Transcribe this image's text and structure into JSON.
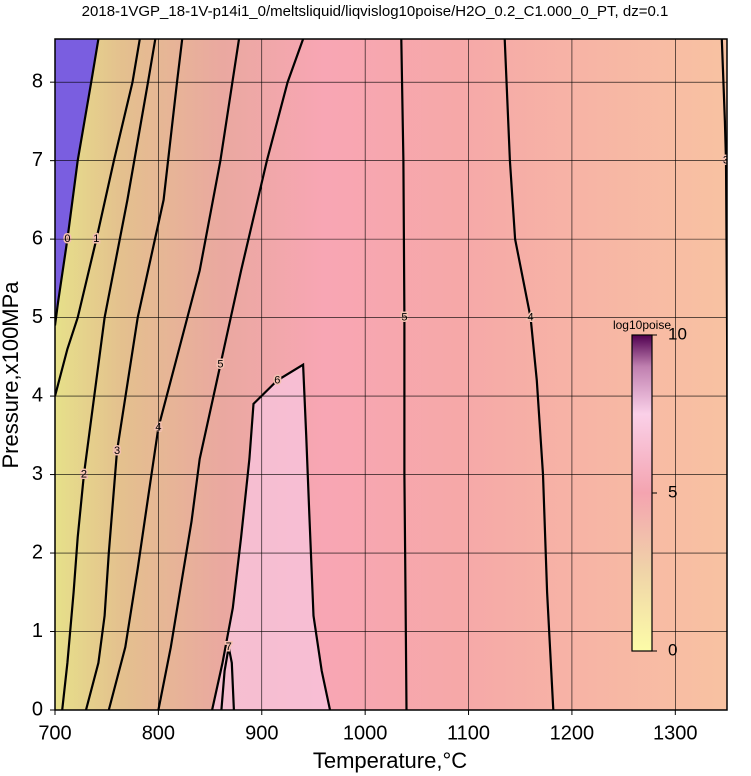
{
  "chart_data": {
    "type": "contour",
    "title": "2018-1VGP_18-1V-p14i1_0/meltsliquid/liqvislog10poise/H2O_0.2_C1.000_0_PT, dz=0.1",
    "x_label": "Temperature,°C",
    "y_label": "Pressure,x100MPa",
    "xlim": [
      700,
      1350
    ],
    "ylim": [
      0,
      8.55
    ],
    "xticks": [
      700,
      800,
      900,
      1000,
      1100,
      1200,
      1300
    ],
    "yticks": [
      0,
      1,
      2,
      3,
      4,
      5,
      6,
      7,
      8
    ],
    "grid": true,
    "contours": [
      {
        "level": 0,
        "x": [
          742,
          735,
          722,
          712,
          703,
          700
        ],
        "y": [
          8.55,
          8,
          7,
          6,
          5.2,
          4.9
        ]
      },
      {
        "level": 1,
        "x": [
          700,
          712,
          722,
          740,
          757,
          775,
          782
        ],
        "y": [
          4.0,
          4.6,
          5.0,
          6.0,
          7.0,
          8.0,
          8.55
        ]
      },
      {
        "level": 2,
        "x": [
          707,
          712,
          718,
          722,
          728,
          748,
          770,
          790,
          797
        ],
        "y": [
          0,
          0.6,
          1.5,
          2.2,
          3.0,
          5.0,
          6.5,
          8.0,
          8.55
        ]
      },
      {
        "level": 3,
        "x": [
          730,
          742,
          748,
          752,
          760,
          780,
          805,
          818,
          823
        ],
        "y": [
          0,
          0.6,
          1.2,
          2.0,
          3.3,
          5.0,
          6.5,
          8.0,
          8.55
        ]
      },
      {
        "level": 4,
        "x": [
          752,
          768,
          780,
          790,
          800,
          820,
          840,
          860,
          878
        ],
        "y": [
          0,
          0.8,
          1.8,
          2.7,
          3.6,
          4.6,
          5.6,
          7.0,
          8.55
        ]
      },
      {
        "level": 5,
        "x": [
          800,
          812,
          822,
          832,
          840,
          860,
          880,
          905,
          925,
          940
        ],
        "y": [
          0,
          0.8,
          1.6,
          2.4,
          3.2,
          4.4,
          5.6,
          7.0,
          8.0,
          8.55
        ]
      },
      {
        "level": 6,
        "x": [
          852,
          862,
          872,
          880,
          888,
          892,
          915,
          940,
          943,
          946,
          950,
          958,
          966
        ],
        "y": [
          0,
          0.6,
          1.3,
          2.2,
          3.2,
          3.9,
          4.2,
          4.4,
          3.5,
          2.5,
          1.2,
          0.5,
          0
        ]
      },
      {
        "level": 7,
        "x": [
          861,
          864,
          868,
          871,
          873
        ],
        "y": [
          0,
          0.5,
          0.8,
          0.6,
          0
        ]
      },
      {
        "level": 5,
        "x": [
          1040,
          1039,
          1038,
          1038,
          1037,
          1035
        ],
        "y": [
          0,
          1.5,
          3.0,
          5.0,
          7.0,
          8.55
        ]
      },
      {
        "level": 4,
        "x": [
          1182,
          1176,
          1172,
          1166,
          1160,
          1145,
          1140,
          1135
        ],
        "y": [
          0,
          1.5,
          3.0,
          4.2,
          5.0,
          6.0,
          7.0,
          8.55
        ]
      },
      {
        "level": 3,
        "x": [
          1352,
          1351,
          1350,
          1349,
          1348,
          1345
        ],
        "y": [
          0,
          2.5,
          5.0,
          7.0,
          7.5,
          8.55
        ]
      }
    ],
    "colorbar": {
      "label": "log10poise",
      "lim": [
        0,
        10
      ],
      "ticks": [
        0,
        5,
        10
      ]
    }
  }
}
